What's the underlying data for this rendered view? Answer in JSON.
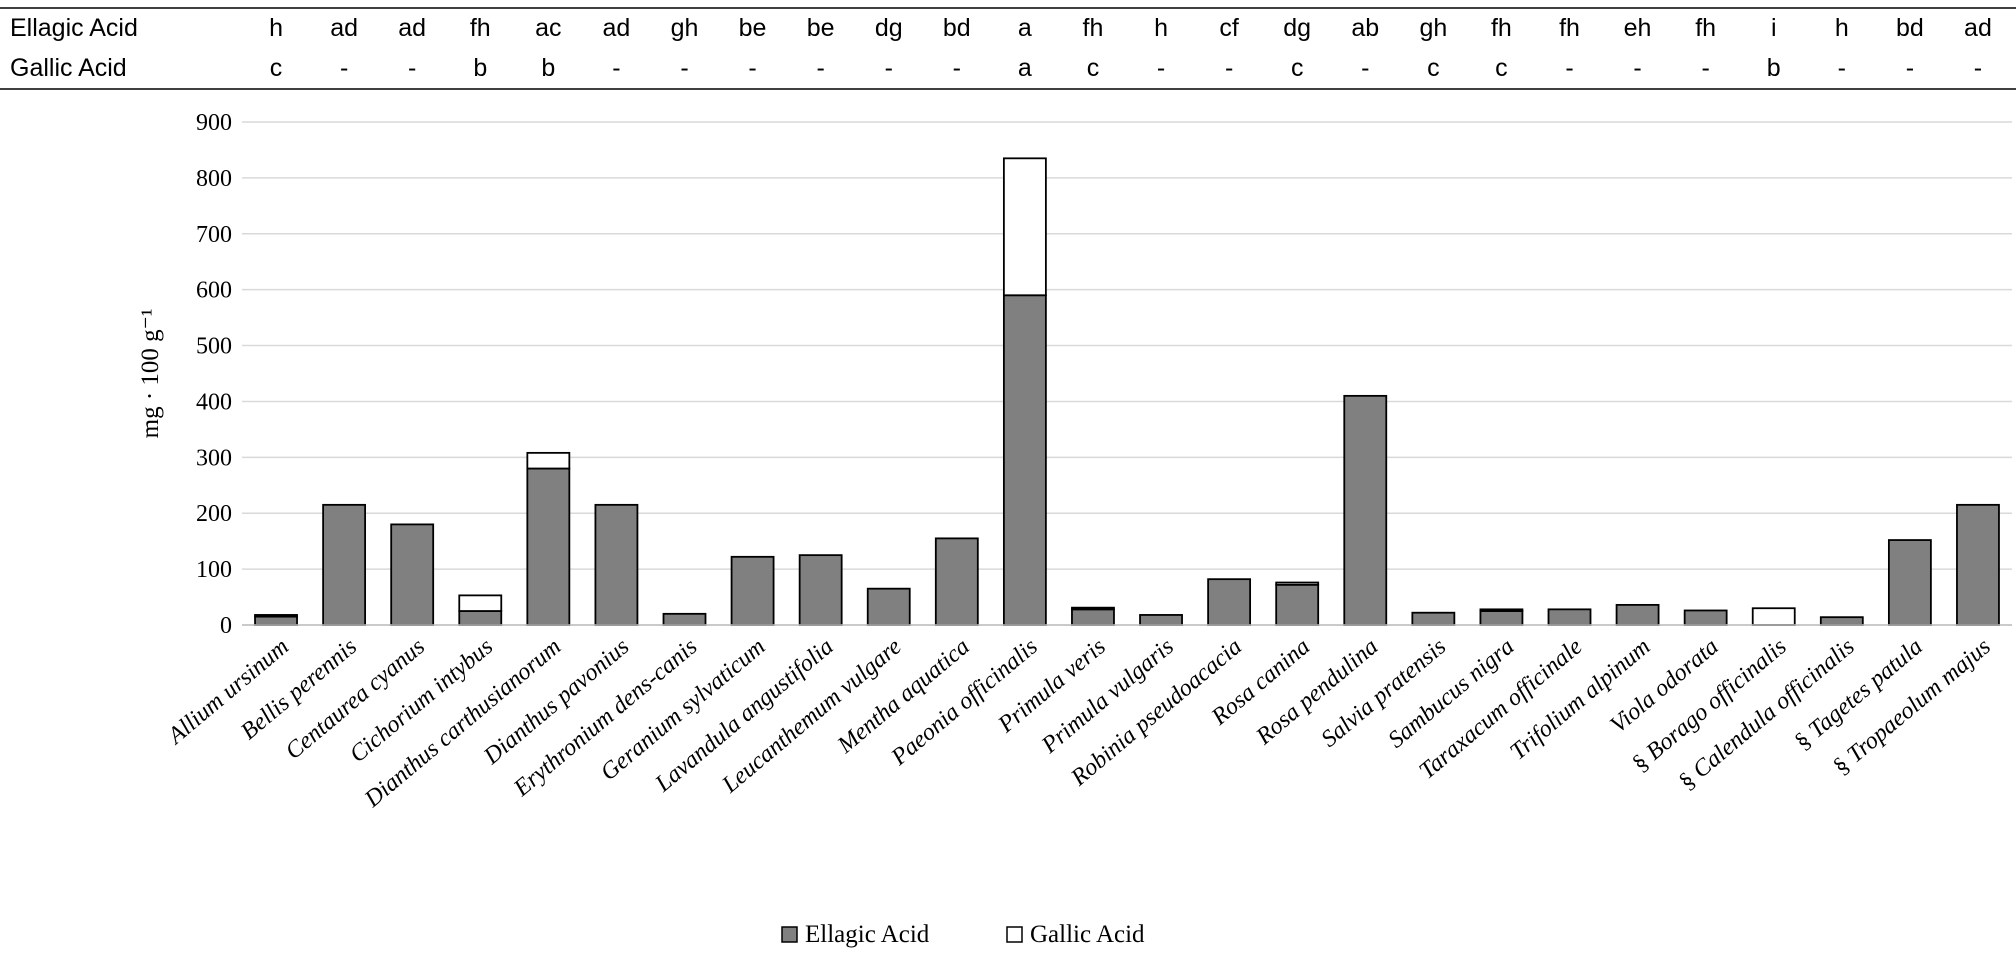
{
  "chart_data": {
    "type": "bar",
    "stacked": true,
    "ylabel": "mg · 100 g⁻¹",
    "ylim": [
      0,
      900
    ],
    "yticks": [
      0,
      100,
      200,
      300,
      400,
      500,
      600,
      700,
      800,
      900
    ],
    "grid": true,
    "legend_position": "bottom-center",
    "header_rows": [
      {
        "label": "Ellagic Acid",
        "values": [
          "h",
          "ad",
          "ad",
          "fh",
          "ac",
          "ad",
          "gh",
          "be",
          "be",
          "dg",
          "bd",
          "a",
          "fh",
          "h",
          "cf",
          "dg",
          "ab",
          "gh",
          "fh",
          "fh",
          "eh",
          "fh",
          "i",
          "h",
          "bd",
          "ad"
        ]
      },
      {
        "label": "Gallic Acid",
        "values": [
          "c",
          "-",
          "-",
          "b",
          "b",
          "-",
          "-",
          "-",
          "-",
          "-",
          "-",
          "a",
          "c",
          "-",
          "-",
          "c",
          "-",
          "c",
          "c",
          "-",
          "-",
          "-",
          "b",
          "-",
          "-",
          "-"
        ]
      }
    ],
    "categories": [
      "Allium ursinum",
      "Bellis perennis",
      "Centaurea cyanus",
      "Cichorium intybus",
      "Dianthus carthusianorum",
      "Dianthus pavonius",
      "Erythronium dens-canis",
      "Geranium sylvaticum",
      "Lavandula angustifolia",
      "Leucanthemum vulgare",
      "Mentha aquatica",
      "Paeonia officinalis",
      "Primula veris",
      "Primula vulgaris",
      "Robinia pseudoacacia",
      "Rosa canina",
      "Rosa pendulina",
      "Salvia pratensis",
      "Sambucus nigra",
      "Taraxacum officinale",
      "Trifolium alpinum",
      "Viola odorata",
      "Borago officinalis",
      "Calendula officinalis",
      "Tagetes patula",
      "Tropaeolum majus"
    ],
    "category_marks": [
      "",
      "",
      "",
      "",
      "",
      "",
      "",
      "",
      "",
      "",
      "",
      "",
      "",
      "",
      "",
      "",
      "",
      "",
      "",
      "",
      "",
      "",
      "§",
      "§",
      "§",
      "§"
    ],
    "series": [
      {
        "name": "Ellagic Acid",
        "color": "#808080",
        "values": [
          15,
          215,
          180,
          25,
          280,
          215,
          20,
          122,
          125,
          65,
          155,
          590,
          28,
          18,
          82,
          72,
          410,
          22,
          25,
          28,
          36,
          26,
          0,
          14,
          152,
          215
        ]
      },
      {
        "name": "Gallic Acid",
        "color": "#ffffff",
        "values": [
          3,
          0,
          0,
          28,
          28,
          0,
          0,
          0,
          0,
          0,
          0,
          245,
          3,
          0,
          0,
          4,
          0,
          0,
          3,
          0,
          0,
          0,
          30,
          0,
          0,
          0
        ]
      }
    ]
  }
}
